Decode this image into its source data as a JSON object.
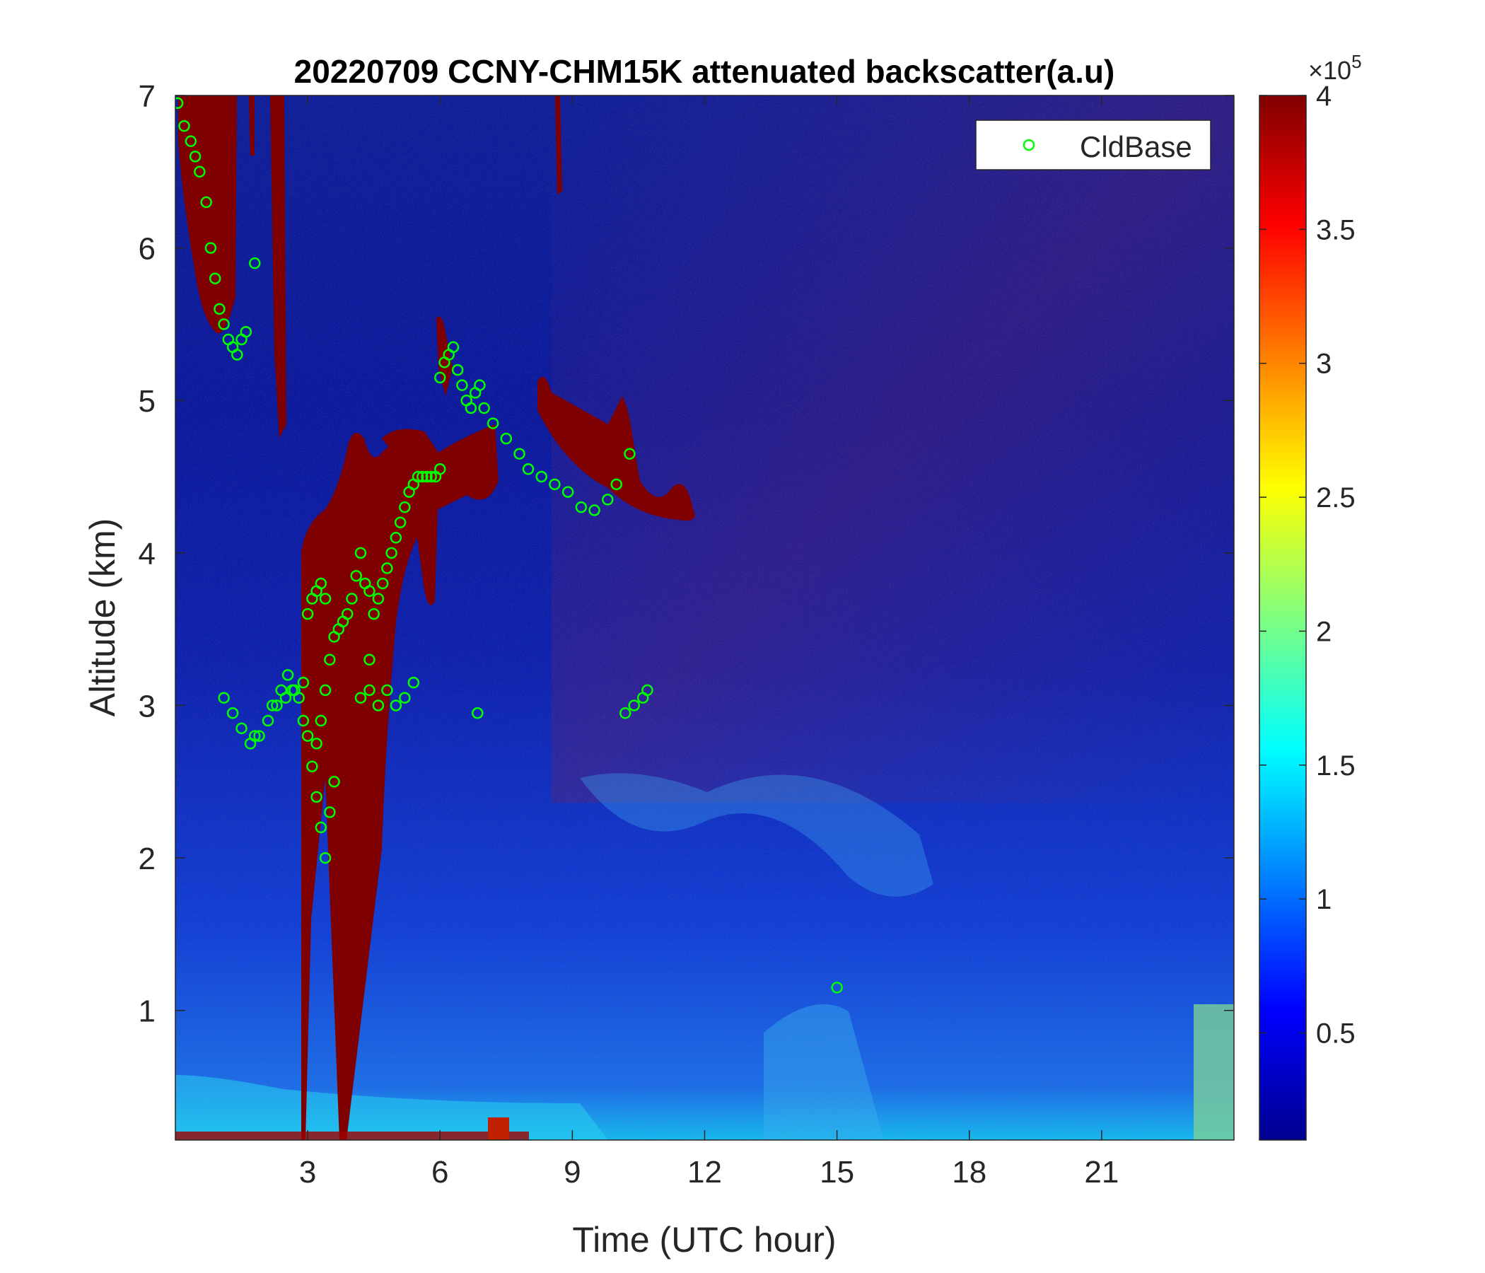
{
  "chart_data": {
    "type": "heatmap",
    "title": "20220709 CCNY-CHM15K attenuated backscatter(a.u)",
    "xlabel": "Time (UTC hour)",
    "ylabel": "Altitude (km)",
    "xlim": [
      0,
      24
    ],
    "ylim": [
      0.15,
      7
    ],
    "xticks": [
      3,
      6,
      9,
      12,
      15,
      18,
      21
    ],
    "yticks": [
      1,
      2,
      3,
      4,
      5,
      6,
      7
    ],
    "colorbar": {
      "colormap": "jet",
      "range": [
        0.1,
        4
      ],
      "ticks": [
        0.5,
        1,
        1.5,
        2,
        2.5,
        3,
        3.5,
        4
      ],
      "exponent_label": "×10",
      "exponent_power": "5"
    },
    "legend": {
      "position": "top-right",
      "entries": [
        "CldBase"
      ]
    },
    "series": [
      {
        "name": "CldBase",
        "marker": "circle",
        "color": "#00ff00",
        "x": [
          0.05,
          0.2,
          0.35,
          0.45,
          0.55,
          0.7,
          0.8,
          0.9,
          1.0,
          1.1,
          1.2,
          1.3,
          1.4,
          1.5,
          1.6,
          1.1,
          1.3,
          1.5,
          1.7,
          1.9,
          2.1,
          2.3,
          2.5,
          2.7,
          2.9,
          1.8,
          2.2,
          2.4,
          2.55,
          2.65,
          2.8,
          2.9,
          3.0,
          3.1,
          3.2,
          3.3,
          3.4,
          3.5,
          3.6,
          3.0,
          3.1,
          3.2,
          3.3,
          3.4,
          3.2,
          3.3,
          3.4,
          3.5,
          3.6,
          3.7,
          3.8,
          3.9,
          4.0,
          4.1,
          4.2,
          4.3,
          4.4,
          4.5,
          4.6,
          4.7,
          4.8,
          4.9,
          5.0,
          5.1,
          5.2,
          5.3,
          5.4,
          5.5,
          5.6,
          5.7,
          5.8,
          5.9,
          6.0,
          4.2,
          4.4,
          4.6,
          4.8,
          5.0,
          5.2,
          5.4,
          6.0,
          6.1,
          6.2,
          6.3,
          6.4,
          6.5,
          6.6,
          6.7,
          6.8,
          6.9,
          7.0,
          7.2,
          7.5,
          7.8,
          8.0,
          8.3,
          8.6,
          8.9,
          9.2,
          9.5,
          9.8,
          10.0,
          10.3,
          6.85,
          10.2,
          10.4,
          10.6,
          10.7,
          15.0,
          1.8,
          4.4
        ],
        "y": [
          6.95,
          6.8,
          6.7,
          6.6,
          6.5,
          6.3,
          6.0,
          5.8,
          5.6,
          5.5,
          5.4,
          5.35,
          5.3,
          5.4,
          5.45,
          3.05,
          2.95,
          2.85,
          2.75,
          2.8,
          2.9,
          3.0,
          3.05,
          3.1,
          3.15,
          2.8,
          3.0,
          3.1,
          3.2,
          3.1,
          3.05,
          2.9,
          2.8,
          2.6,
          2.4,
          2.2,
          2.0,
          2.3,
          2.5,
          3.6,
          3.7,
          3.75,
          3.8,
          3.7,
          2.75,
          2.9,
          3.1,
          3.3,
          3.45,
          3.5,
          3.55,
          3.6,
          3.7,
          3.85,
          4.0,
          3.8,
          3.75,
          3.6,
          3.7,
          3.8,
          3.9,
          4.0,
          4.1,
          4.2,
          4.3,
          4.4,
          4.45,
          4.5,
          4.5,
          4.5,
          4.5,
          4.5,
          4.55,
          3.05,
          3.1,
          3.0,
          3.1,
          3.0,
          3.05,
          3.15,
          5.15,
          5.25,
          5.3,
          5.35,
          5.2,
          5.1,
          5.0,
          4.95,
          5.05,
          5.1,
          4.95,
          4.85,
          4.75,
          4.65,
          4.55,
          4.5,
          4.45,
          4.4,
          4.3,
          4.28,
          4.35,
          4.45,
          4.65,
          2.95,
          2.95,
          3.0,
          3.05,
          3.1,
          1.15,
          5.9,
          3.3
        ]
      }
    ]
  }
}
